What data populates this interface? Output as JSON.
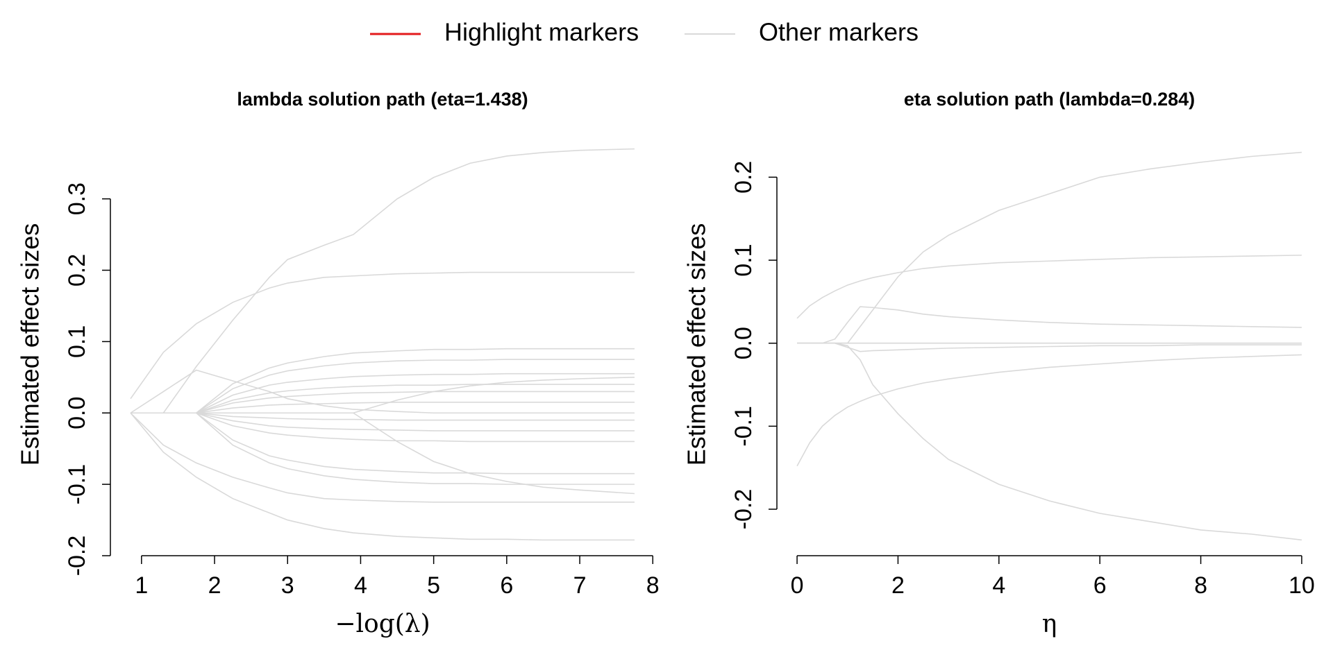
{
  "legend": [
    {
      "name": "Highlight markers",
      "color": "#e31a1c"
    },
    {
      "name": "Other markers",
      "color": "#d9d9d9"
    }
  ],
  "chart_data": [
    {
      "type": "line",
      "title": "lambda solution path (eta=1.438)",
      "x_label": "−log(λ)",
      "y_label": "Estimated effect sizes",
      "color": "#d9d9d9",
      "xlim": [
        0.574,
        8.026
      ],
      "ylim": [
        -0.2,
        0.392
      ],
      "xticks": [
        1,
        2,
        3,
        4,
        5,
        6,
        7,
        8
      ],
      "yticks": [
        -0.2,
        -0.1,
        {
          "value": 0,
          "label": "0.0"
        },
        0.1,
        0.2,
        0.3
      ],
      "x": [
        0.85,
        1.3,
        1.75,
        2.25,
        2.75,
        3,
        3.5,
        3.9,
        4.5,
        5,
        5.5,
        6,
        6.5,
        7,
        7.75
      ],
      "series": [
        {
          "values": [
            0,
            0,
            0.065,
            0.13,
            0.19,
            0.215,
            0.235,
            0.25,
            0.3,
            0.33,
            0.35,
            0.36,
            0.365,
            0.368,
            0.37
          ]
        },
        {
          "values": [
            0.02,
            0.085,
            0.125,
            0.155,
            0.175,
            0.182,
            0.19,
            0.192,
            0.195,
            0.196,
            0.197,
            0.197,
            0.197,
            0.197,
            0.197
          ]
        },
        {
          "values": [
            0,
            -0.055,
            -0.09,
            -0.12,
            -0.14,
            -0.15,
            -0.162,
            -0.168,
            -0.173,
            -0.175,
            -0.177,
            -0.177,
            -0.178,
            -0.178,
            -0.178
          ]
        },
        {
          "values": [
            0,
            -0.045,
            -0.07,
            -0.09,
            -0.105,
            -0.112,
            -0.12,
            -0.122,
            -0.124,
            -0.125,
            -0.125,
            -0.125,
            -0.125,
            -0.125,
            -0.125
          ]
        },
        {
          "values": [
            0,
            0.03,
            0.06,
            0.045,
            0.03,
            0.02,
            0.01,
            0.005,
            0.002,
            0,
            0,
            0,
            0,
            0,
            0
          ]
        },
        {
          "values": [
            0,
            0,
            0,
            0.041,
            0.063,
            0.07,
            0.079,
            0.084,
            0.087,
            0.089,
            0.089,
            0.09,
            0.09,
            0.09,
            0.09
          ]
        },
        {
          "values": [
            0,
            0,
            0,
            0.034,
            0.053,
            0.059,
            0.066,
            0.07,
            0.073,
            0.074,
            0.074,
            0.075,
            0.075,
            0.075,
            0.075
          ]
        },
        {
          "values": [
            0,
            0,
            0,
            0.025,
            0.039,
            0.043,
            0.048,
            0.051,
            0.053,
            0.054,
            0.054,
            0.055,
            0.055,
            0.055,
            0.055
          ]
        },
        {
          "values": [
            0,
            0,
            0,
            0.018,
            0.028,
            0.031,
            0.035,
            0.037,
            0.039,
            0.039,
            0.04,
            0.04,
            0.04,
            0.04,
            0.04
          ]
        },
        {
          "values": [
            0,
            0,
            0,
            0.014,
            0.021,
            0.023,
            0.026,
            0.028,
            0.029,
            0.03,
            0.03,
            0.03,
            0.03,
            0.03,
            0.03
          ]
        },
        {
          "values": [
            0,
            0,
            0,
            0.007,
            0.011,
            0.012,
            0.013,
            0.014,
            0.015,
            0.015,
            0.015,
            0.015,
            0.015,
            0.015,
            0.015
          ]
        },
        {
          "values": [
            0,
            0,
            0,
            -0.005,
            -0.007,
            -0.008,
            -0.009,
            -0.009,
            -0.01,
            -0.01,
            -0.01,
            -0.01,
            -0.01,
            -0.01,
            -0.01
          ]
        },
        {
          "values": [
            0,
            0,
            0,
            -0.011,
            -0.018,
            -0.02,
            -0.022,
            -0.023,
            -0.024,
            -0.025,
            -0.025,
            -0.025,
            -0.025,
            -0.025,
            -0.025
          ]
        },
        {
          "values": [
            0,
            0,
            0,
            -0.018,
            -0.028,
            -0.031,
            -0.035,
            -0.037,
            -0.039,
            -0.039,
            -0.04,
            -0.04,
            -0.04,
            -0.04,
            -0.04
          ]
        },
        {
          "values": [
            0,
            0,
            0,
            -0.038,
            -0.06,
            -0.066,
            -0.075,
            -0.079,
            -0.082,
            -0.084,
            -0.084,
            -0.085,
            -0.085,
            -0.085,
            -0.085
          ]
        },
        {
          "values": [
            0,
            0,
            0,
            -0.045,
            -0.07,
            -0.078,
            -0.088,
            -0.093,
            -0.097,
            -0.099,
            -0.099,
            -0.1,
            -0.1,
            -0.1,
            -0.1
          ]
        },
        {
          "values": [
            0,
            0,
            0,
            0,
            0,
            0,
            0,
            0,
            -0.04,
            -0.068,
            -0.085,
            -0.096,
            -0.104,
            -0.108,
            -0.113
          ]
        },
        {
          "values": [
            0,
            0,
            0,
            0,
            0,
            0,
            0,
            0,
            0.018,
            0.03,
            0.038,
            0.043,
            0.046,
            0.048,
            0.05
          ]
        }
      ]
    },
    {
      "type": "line",
      "title": "eta solution path (lambda=0.284)",
      "x_label": "η",
      "y_label": "Estimated effect sizes",
      "color": "#d9d9d9",
      "xlim": [
        -0.4,
        10.4
      ],
      "ylim": [
        -0.256,
        0.253
      ],
      "xticks": [
        0,
        2,
        4,
        6,
        8,
        10
      ],
      "yticks": [
        -0.2,
        -0.1,
        {
          "value": 0,
          "label": "0.0"
        },
        0.1,
        0.2
      ],
      "x": [
        0,
        0.25,
        0.5,
        0.75,
        1,
        1.25,
        1.5,
        2,
        2.5,
        3,
        4,
        5,
        6,
        7,
        8,
        9,
        10
      ],
      "series": [
        {
          "values": [
            0,
            0,
            0,
            0,
            0,
            0.02,
            0.04,
            0.08,
            0.11,
            0.13,
            0.16,
            0.18,
            0.2,
            0.21,
            0.218,
            0.225,
            0.23
          ]
        },
        {
          "values": [
            0.03,
            0.045,
            0.055,
            0.063,
            0.07,
            0.075,
            0.079,
            0.085,
            0.09,
            0.093,
            0.097,
            0.099,
            0.101,
            0.103,
            0.104,
            0.105,
            0.106
          ]
        },
        {
          "values": [
            0,
            0,
            0,
            0.005,
            0.025,
            0.044,
            0.043,
            0.04,
            0.035,
            0.032,
            0.028,
            0.025,
            0.023,
            0.022,
            0.021,
            0.02,
            0.019
          ]
        },
        {
          "values": [
            0,
            0,
            0,
            0,
            -0.003,
            -0.02,
            -0.05,
            -0.085,
            -0.115,
            -0.14,
            -0.17,
            -0.19,
            -0.205,
            -0.215,
            -0.225,
            -0.23,
            -0.237
          ]
        },
        {
          "values": [
            -0.148,
            -0.12,
            -0.1,
            -0.087,
            -0.077,
            -0.07,
            -0.064,
            -0.055,
            -0.048,
            -0.043,
            -0.035,
            -0.029,
            -0.025,
            -0.021,
            -0.018,
            -0.016,
            -0.014
          ]
        },
        {
          "values": [
            0,
            0,
            0,
            0,
            -0.005,
            -0.01,
            -0.009,
            -0.008,
            -0.007,
            -0.006,
            -0.005,
            -0.004,
            -0.003,
            -0.003,
            -0.002,
            -0.002,
            -0.002
          ]
        },
        {
          "values": [
            0,
            0,
            0,
            0,
            0,
            0,
            0,
            0,
            0,
            0,
            0,
            0,
            0,
            0,
            0,
            0,
            0
          ]
        },
        {
          "values": [
            0,
            0,
            0,
            0,
            0,
            0,
            0,
            0,
            0,
            0,
            0,
            0,
            0,
            0,
            0,
            0,
            0
          ]
        }
      ]
    }
  ]
}
